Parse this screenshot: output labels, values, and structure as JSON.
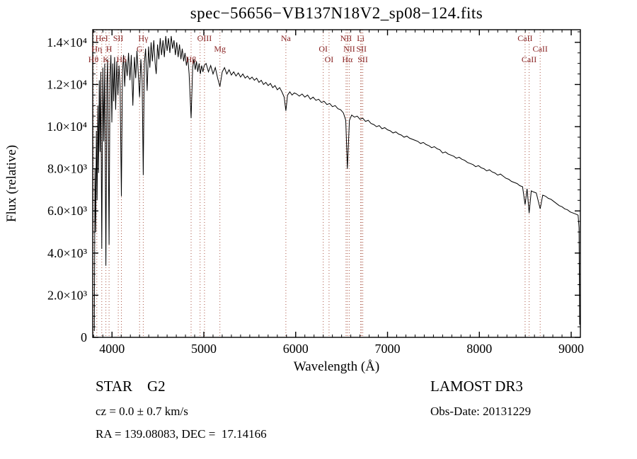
{
  "title": "spec−56656−VB137N18V2_sp08−124.fits",
  "footer": {
    "class_label": "STAR    G2",
    "survey": "LAMOST DR3",
    "cz": "cz = 0.0 ± 0.7 km/s",
    "obs_date": "Obs-Date: 20131229",
    "coords": "RA = 139.08083, DEC =  17.14166"
  },
  "chart_data": {
    "type": "line",
    "title": "spec−56656−VB137N18V2_sp08−124.fits",
    "xlabel": "Wavelength (Å)",
    "ylabel": "Flux (relative)",
    "xlim": [
      3790,
      9100
    ],
    "ylim": [
      0,
      14600
    ],
    "grid": false,
    "legend": "none",
    "xticks": [
      {
        "v": 4000,
        "label": "4000"
      },
      {
        "v": 5000,
        "label": "5000"
      },
      {
        "v": 6000,
        "label": "6000"
      },
      {
        "v": 7000,
        "label": "7000"
      },
      {
        "v": 8000,
        "label": "8000"
      },
      {
        "v": 9000,
        "label": "9000"
      }
    ],
    "x_minor_step": 100,
    "yticks": [
      {
        "v": 0,
        "label": "0"
      },
      {
        "v": 2000,
        "label": "2.0×10³"
      },
      {
        "v": 4000,
        "label": "4.0×10³"
      },
      {
        "v": 6000,
        "label": "6.0×10³"
      },
      {
        "v": 8000,
        "label": "8.0×10³"
      },
      {
        "v": 10000,
        "label": "1.0×10⁴"
      },
      {
        "v": 12000,
        "label": "1.2×10⁴"
      },
      {
        "v": 14000,
        "label": "1.4×10⁴"
      }
    ],
    "y_minor_step": 500,
    "colors": {
      "line": "#000000",
      "marked_line": "#aa5544",
      "marked_label": "#882222",
      "axis": "#000000"
    },
    "marked_lines": [
      {
        "label": "Hθ",
        "wl": 3798,
        "row": 2
      },
      {
        "label": "Hη",
        "wl": 3835,
        "row": 1
      },
      {
        "label": "HeI",
        "wl": 3889,
        "row": 0
      },
      {
        "label": "K",
        "wl": 3933,
        "row": 2
      },
      {
        "label": "H",
        "wl": 3968,
        "row": 1
      },
      {
        "label": "SII",
        "wl": 4068,
        "row": 0
      },
      {
        "label": "Hδ",
        "wl": 4102,
        "row": 2
      },
      {
        "label": "G",
        "wl": 4300,
        "row": 1
      },
      {
        "label": "Hγ",
        "wl": 4340,
        "row": 0
      },
      {
        "label": "Hβ",
        "wl": 4861,
        "row": 2
      },
      {
        "label": "",
        "wl": 4959,
        "row": 0
      },
      {
        "label": "OIII",
        "wl": 5007,
        "row": 0
      },
      {
        "label": "Mg",
        "wl": 5175,
        "row": 1
      },
      {
        "label": "Na",
        "wl": 5893,
        "row": 0
      },
      {
        "label": "OI",
        "wl": 6300,
        "row": 1
      },
      {
        "label": "OI",
        "wl": 6363,
        "row": 2
      },
      {
        "label": "NII",
        "wl": 6548,
        "row": 0
      },
      {
        "label": "Hα",
        "wl": 6563,
        "row": 2
      },
      {
        "label": "NII",
        "wl": 6583,
        "row": 1
      },
      {
        "label": "Li",
        "wl": 6708,
        "row": 0
      },
      {
        "label": "SII",
        "wl": 6716,
        "row": 1
      },
      {
        "label": "SII",
        "wl": 6731,
        "row": 2
      },
      {
        "label": "CaII",
        "wl": 8498,
        "row": 0
      },
      {
        "label": "CaII",
        "wl": 8542,
        "row": 2
      },
      {
        "label": "CaII",
        "wl": 8662,
        "row": 1
      }
    ],
    "series": [
      {
        "name": "spectrum",
        "points": [
          [
            3808,
            300
          ],
          [
            3815,
            8000
          ],
          [
            3822,
            5000
          ],
          [
            3830,
            9800
          ],
          [
            3838,
            6500
          ],
          [
            3846,
            11000
          ],
          [
            3854,
            7800
          ],
          [
            3862,
            12200
          ],
          [
            3870,
            8800
          ],
          [
            3878,
            12600
          ],
          [
            3889,
            4200
          ],
          [
            3900,
            12800
          ],
          [
            3910,
            9300
          ],
          [
            3920,
            13000
          ],
          [
            3933,
            3400
          ],
          [
            3944,
            12000
          ],
          [
            3952,
            13200
          ],
          [
            3960,
            8800
          ],
          [
            3968,
            4400
          ],
          [
            3978,
            12400
          ],
          [
            3988,
            13400
          ],
          [
            3998,
            10200
          ],
          [
            4008,
            13000
          ],
          [
            4018,
            11200
          ],
          [
            4028,
            13300
          ],
          [
            4040,
            10800
          ],
          [
            4052,
            13100
          ],
          [
            4064,
            11500
          ],
          [
            4076,
            12900
          ],
          [
            4088,
            11900
          ],
          [
            4102,
            6700
          ],
          [
            4114,
            12600
          ],
          [
            4126,
            13400
          ],
          [
            4138,
            11900
          ],
          [
            4150,
            13200
          ],
          [
            4165,
            12400
          ],
          [
            4180,
            13500
          ],
          [
            4195,
            12200
          ],
          [
            4210,
            13400
          ],
          [
            4227,
            11000
          ],
          [
            4244,
            13300
          ],
          [
            4258,
            12300
          ],
          [
            4272,
            13600
          ],
          [
            4286,
            12500
          ],
          [
            4300,
            11400
          ],
          [
            4314,
            13200
          ],
          [
            4328,
            12200
          ],
          [
            4340,
            7700
          ],
          [
            4352,
            13000
          ],
          [
            4366,
            13700
          ],
          [
            4383,
            11700
          ],
          [
            4398,
            13800
          ],
          [
            4412,
            12800
          ],
          [
            4426,
            14000
          ],
          [
            4440,
            13100
          ],
          [
            4455,
            14100
          ],
          [
            4470,
            13000
          ],
          [
            4481,
            12500
          ],
          [
            4496,
            13900
          ],
          [
            4510,
            13200
          ],
          [
            4525,
            14200
          ],
          [
            4540,
            13400
          ],
          [
            4555,
            14100
          ],
          [
            4570,
            13300
          ],
          [
            4585,
            14300
          ],
          [
            4600,
            13600
          ],
          [
            4615,
            14200
          ],
          [
            4630,
            13500
          ],
          [
            4645,
            14300
          ],
          [
            4660,
            13700
          ],
          [
            4675,
            14100
          ],
          [
            4690,
            13400
          ],
          [
            4705,
            14000
          ],
          [
            4720,
            13300
          ],
          [
            4735,
            13900
          ],
          [
            4750,
            13200
          ],
          [
            4765,
            13700
          ],
          [
            4780,
            13100
          ],
          [
            4795,
            13500
          ],
          [
            4810,
            12900
          ],
          [
            4825,
            13300
          ],
          [
            4840,
            12500
          ],
          [
            4861,
            10400
          ],
          [
            4878,
            12800
          ],
          [
            4892,
            13200
          ],
          [
            4906,
            12700
          ],
          [
            4920,
            13100
          ],
          [
            4934,
            12600
          ],
          [
            4948,
            13000
          ],
          [
            4962,
            12500
          ],
          [
            4976,
            12900
          ],
          [
            4990,
            12600
          ],
          [
            5004,
            12900
          ],
          [
            5025,
            13000
          ],
          [
            5050,
            12600
          ],
          [
            5075,
            12900
          ],
          [
            5100,
            12500
          ],
          [
            5125,
            12800
          ],
          [
            5150,
            12300
          ],
          [
            5175,
            11900
          ],
          [
            5200,
            12600
          ],
          [
            5225,
            12800
          ],
          [
            5250,
            12500
          ],
          [
            5275,
            12700
          ],
          [
            5300,
            12450
          ],
          [
            5325,
            12600
          ],
          [
            5350,
            12400
          ],
          [
            5375,
            12550
          ],
          [
            5400,
            12350
          ],
          [
            5425,
            12500
          ],
          [
            5450,
            12300
          ],
          [
            5475,
            12400
          ],
          [
            5500,
            12250
          ],
          [
            5525,
            12350
          ],
          [
            5550,
            12200
          ],
          [
            5575,
            12300
          ],
          [
            5600,
            12100
          ],
          [
            5625,
            12200
          ],
          [
            5650,
            12000
          ],
          [
            5675,
            12100
          ],
          [
            5700,
            11950
          ],
          [
            5725,
            12050
          ],
          [
            5750,
            11850
          ],
          [
            5775,
            11950
          ],
          [
            5800,
            11750
          ],
          [
            5825,
            11850
          ],
          [
            5850,
            11650
          ],
          [
            5875,
            11400
          ],
          [
            5893,
            10750
          ],
          [
            5912,
            11500
          ],
          [
            5936,
            11650
          ],
          [
            5960,
            11500
          ],
          [
            5985,
            11600
          ],
          [
            6010,
            11550
          ],
          [
            6040,
            11450
          ],
          [
            6070,
            11550
          ],
          [
            6100,
            11400
          ],
          [
            6130,
            11500
          ],
          [
            6160,
            11300
          ],
          [
            6190,
            11400
          ],
          [
            6220,
            11250
          ],
          [
            6250,
            11300
          ],
          [
            6280,
            11150
          ],
          [
            6310,
            11200
          ],
          [
            6340,
            11050
          ],
          [
            6370,
            11100
          ],
          [
            6400,
            10950
          ],
          [
            6430,
            11000
          ],
          [
            6460,
            10850
          ],
          [
            6490,
            10800
          ],
          [
            6520,
            10650
          ],
          [
            6545,
            10300
          ],
          [
            6563,
            8000
          ],
          [
            6585,
            10300
          ],
          [
            6610,
            10550
          ],
          [
            6640,
            10450
          ],
          [
            6670,
            10500
          ],
          [
            6700,
            10350
          ],
          [
            6730,
            10400
          ],
          [
            6760,
            10250
          ],
          [
            6790,
            10300
          ],
          [
            6820,
            10150
          ],
          [
            6850,
            10100
          ],
          [
            6880,
            10000
          ],
          [
            6910,
            10050
          ],
          [
            6940,
            9900
          ],
          [
            6970,
            9950
          ],
          [
            7000,
            9850
          ],
          [
            7030,
            9800
          ],
          [
            7060,
            9700
          ],
          [
            7090,
            9750
          ],
          [
            7120,
            9650
          ],
          [
            7150,
            9600
          ],
          [
            7180,
            9500
          ],
          [
            7210,
            9550
          ],
          [
            7240,
            9450
          ],
          [
            7270,
            9400
          ],
          [
            7300,
            9350
          ],
          [
            7330,
            9300
          ],
          [
            7360,
            9200
          ],
          [
            7390,
            9250
          ],
          [
            7420,
            9150
          ],
          [
            7450,
            9100
          ],
          [
            7480,
            9000
          ],
          [
            7510,
            9050
          ],
          [
            7540,
            8950
          ],
          [
            7570,
            8900
          ],
          [
            7600,
            8750
          ],
          [
            7630,
            8800
          ],
          [
            7660,
            8700
          ],
          [
            7690,
            8650
          ],
          [
            7720,
            8600
          ],
          [
            7750,
            8500
          ],
          [
            7780,
            8550
          ],
          [
            7810,
            8450
          ],
          [
            7840,
            8400
          ],
          [
            7870,
            8300
          ],
          [
            7900,
            8250
          ],
          [
            7930,
            8200
          ],
          [
            7960,
            8100
          ],
          [
            7990,
            8150
          ],
          [
            8020,
            8050
          ],
          [
            8050,
            8000
          ],
          [
            8080,
            7900
          ],
          [
            8110,
            7950
          ],
          [
            8140,
            7850
          ],
          [
            8170,
            7800
          ],
          [
            8200,
            7700
          ],
          [
            8230,
            7750
          ],
          [
            8260,
            7650
          ],
          [
            8290,
            7550
          ],
          [
            8320,
            7500
          ],
          [
            8350,
            7400
          ],
          [
            8380,
            7350
          ],
          [
            8410,
            7300
          ],
          [
            8440,
            7200
          ],
          [
            8470,
            7150
          ],
          [
            8498,
            6300
          ],
          [
            8520,
            7050
          ],
          [
            8542,
            5900
          ],
          [
            8565,
            6950
          ],
          [
            8590,
            6900
          ],
          [
            8620,
            6850
          ],
          [
            8662,
            6100
          ],
          [
            8690,
            6750
          ],
          [
            8720,
            6700
          ],
          [
            8750,
            6600
          ],
          [
            8780,
            6550
          ],
          [
            8810,
            6450
          ],
          [
            8840,
            6350
          ],
          [
            8870,
            6250
          ],
          [
            8900,
            6200
          ],
          [
            8930,
            6100
          ],
          [
            8960,
            6050
          ],
          [
            8990,
            5950
          ],
          [
            9020,
            5900
          ],
          [
            9050,
            5850
          ],
          [
            9075,
            5800
          ],
          [
            9085,
            5200
          ],
          [
            9092,
            600
          ]
        ]
      }
    ]
  }
}
